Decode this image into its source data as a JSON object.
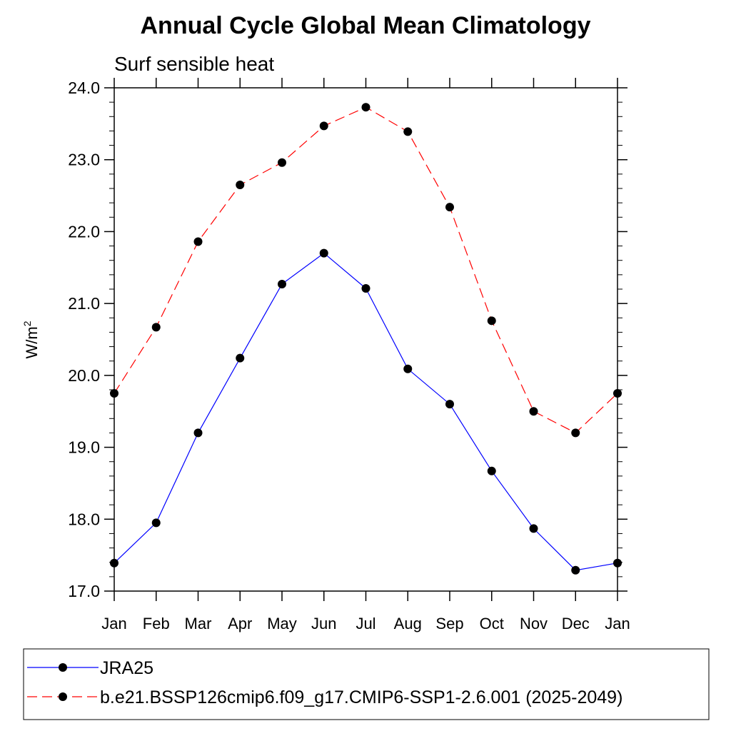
{
  "chart_data": {
    "type": "line",
    "title": "Annual Cycle Global Mean Climatology",
    "subtitle": "Surf sensible heat",
    "ylabel": "W/m",
    "ylabel_superscript": "2",
    "categories": [
      "Jan",
      "Feb",
      "Mar",
      "Apr",
      "May",
      "Jun",
      "Jul",
      "Aug",
      "Sep",
      "Oct",
      "Nov",
      "Dec",
      "Jan"
    ],
    "ylim": [
      17.0,
      24.0
    ],
    "yticks": [
      "17.0",
      "18.0",
      "19.0",
      "20.0",
      "21.0",
      "22.0",
      "23.0",
      "24.0"
    ],
    "grid": false,
    "legend_position": "bottom",
    "series": [
      {
        "name": "JRA25",
        "color": "#0000ff",
        "dash": "solid",
        "values": [
          17.39,
          17.95,
          19.2,
          20.24,
          21.27,
          21.7,
          21.21,
          20.09,
          19.6,
          18.67,
          17.87,
          17.29,
          17.39
        ]
      },
      {
        "name": "b.e21.BSSP126cmip6.f09_g17.CMIP6-SSP1-2.6.001 (2025-2049)",
        "color": "#ff0000",
        "dash": "dashed",
        "values": [
          19.75,
          20.67,
          21.86,
          22.65,
          22.96,
          23.47,
          23.73,
          23.39,
          22.34,
          20.76,
          19.5,
          19.2,
          19.75
        ]
      }
    ]
  }
}
